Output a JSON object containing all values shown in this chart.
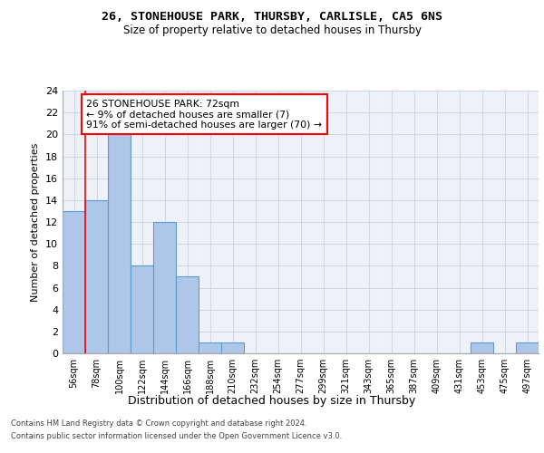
{
  "title1": "26, STONEHOUSE PARK, THURSBY, CARLISLE, CA5 6NS",
  "title2": "Size of property relative to detached houses in Thursby",
  "xlabel": "Distribution of detached houses by size in Thursby",
  "ylabel": "Number of detached properties",
  "bar_labels": [
    "56sqm",
    "78sqm",
    "100sqm",
    "122sqm",
    "144sqm",
    "166sqm",
    "188sqm",
    "210sqm",
    "232sqm",
    "254sqm",
    "277sqm",
    "299sqm",
    "321sqm",
    "343sqm",
    "365sqm",
    "387sqm",
    "409sqm",
    "431sqm",
    "453sqm",
    "475sqm",
    "497sqm"
  ],
  "bar_values": [
    13,
    14,
    20,
    8,
    12,
    7,
    1,
    1,
    0,
    0,
    0,
    0,
    0,
    0,
    0,
    0,
    0,
    0,
    1,
    0,
    1
  ],
  "bar_color": "#aec6e8",
  "bar_edge_color": "#5b9bd5",
  "grid_color": "#d0d8e8",
  "bg_color": "#eef2f8",
  "red_line_x": 0.5,
  "annotation_text": "26 STONEHOUSE PARK: 72sqm\n← 9% of detached houses are smaller (7)\n91% of semi-detached houses are larger (70) →",
  "footnote1": "Contains HM Land Registry data © Crown copyright and database right 2024.",
  "footnote2": "Contains public sector information licensed under the Open Government Licence v3.0.",
  "ylim": [
    0,
    24
  ],
  "yticks": [
    0,
    2,
    4,
    6,
    8,
    10,
    12,
    14,
    16,
    18,
    20,
    22,
    24
  ]
}
